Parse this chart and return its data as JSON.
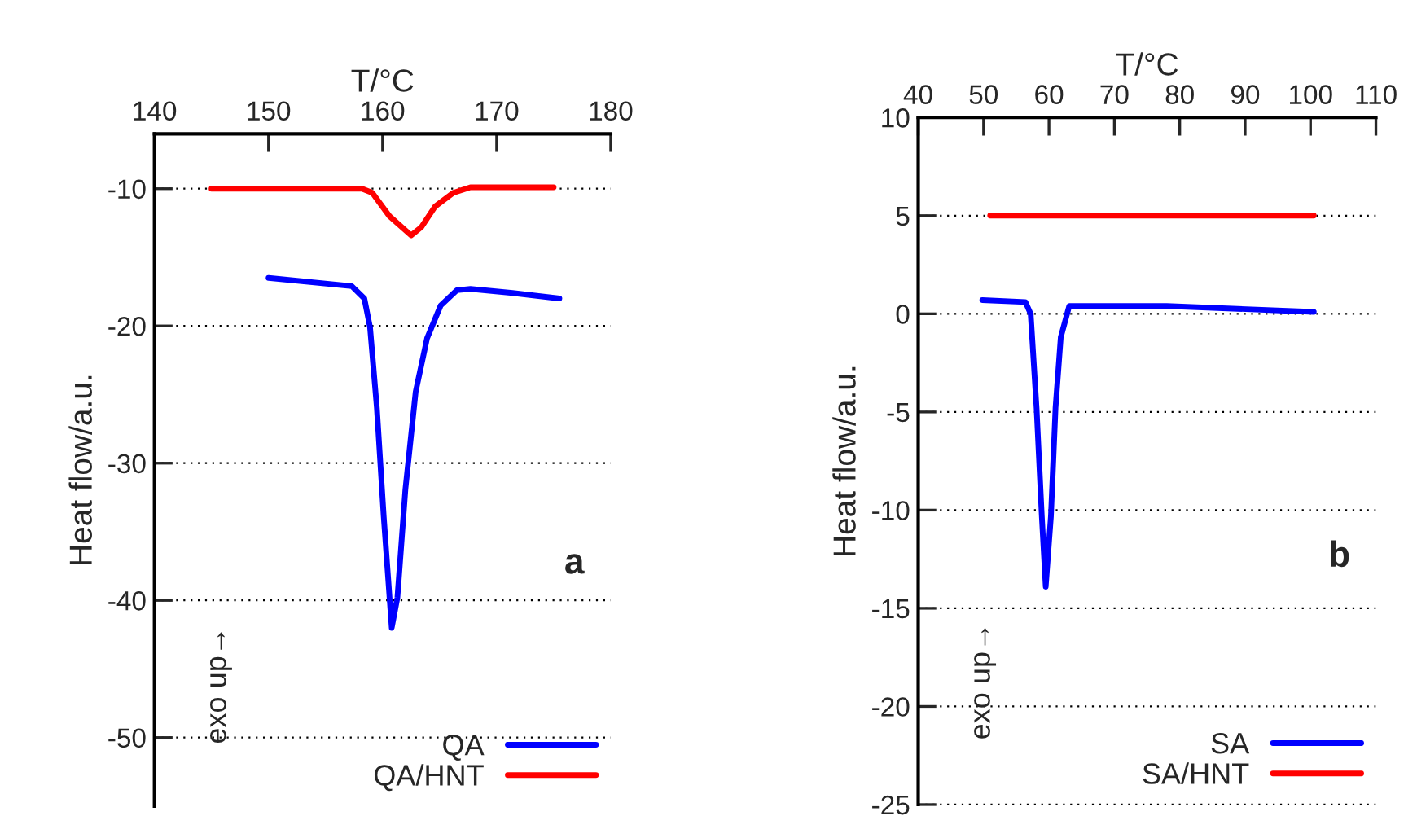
{
  "chart_data": [
    {
      "type": "line",
      "xlabel": "T/°C",
      "ylabel": "Heat flow/a.u.",
      "xlim": [
        140,
        180
      ],
      "xticks": [
        140,
        150,
        160,
        170,
        180
      ],
      "ylim": [
        -55,
        -6
      ],
      "yticks": [
        -10,
        -20,
        -30,
        -40,
        -50
      ],
      "grid": "y",
      "legend": "bottom right",
      "annotations": [
        "a",
        "exo up→"
      ],
      "series": [
        {
          "name": "QA",
          "color": "#0000ff",
          "x": [
            150,
            157.3,
            158.4,
            158.9,
            159.5,
            160.1,
            160.8,
            161.3,
            162.0,
            162.9,
            163.9,
            165.1,
            166.5,
            167.7,
            171.4,
            175.5
          ],
          "values": [
            -16.5,
            -17.1,
            -18.0,
            -20.1,
            -26.0,
            -33.9,
            -42.0,
            -39.8,
            -31.9,
            -24.8,
            -20.9,
            -18.5,
            -17.4,
            -17.3,
            -17.6,
            -18.0
          ]
        },
        {
          "name": "QA/HNT",
          "color": "#ff0000",
          "x": [
            145.0,
            158.2,
            159.1,
            160.6,
            162.5,
            163.4,
            164.6,
            166.2,
            167.7,
            175.0
          ],
          "values": [
            -10.0,
            -10.0,
            -10.3,
            -12.0,
            -13.4,
            -12.8,
            -11.3,
            -10.3,
            -9.9,
            -9.9
          ]
        }
      ]
    },
    {
      "type": "line",
      "xlabel": "T/°C",
      "ylabel": "Heat flow/a.u.",
      "xlim": [
        40,
        110
      ],
      "xticks": [
        40,
        50,
        60,
        70,
        80,
        90,
        100,
        110
      ],
      "ylim": [
        -25,
        10
      ],
      "yticks": [
        10,
        5,
        0,
        -5,
        -10,
        -15,
        -20,
        -25
      ],
      "grid": "y",
      "legend": "bottom right",
      "annotations": [
        "b",
        "exo up→"
      ],
      "series": [
        {
          "name": "SA",
          "color": "#0000ff",
          "x": [
            49.8,
            56.4,
            57.2,
            58.1,
            58.9,
            59.5,
            60.3,
            61.0,
            61.8,
            63.1,
            78.0,
            100.5
          ],
          "values": [
            0.7,
            0.6,
            0.0,
            -4.8,
            -10.3,
            -13.9,
            -10.3,
            -4.8,
            -1.2,
            0.4,
            0.4,
            0.1
          ]
        },
        {
          "name": "SA/HNT",
          "color": "#ff0000",
          "x": [
            51.0,
            100.5
          ],
          "values": [
            5.0,
            5.0
          ]
        }
      ]
    }
  ]
}
